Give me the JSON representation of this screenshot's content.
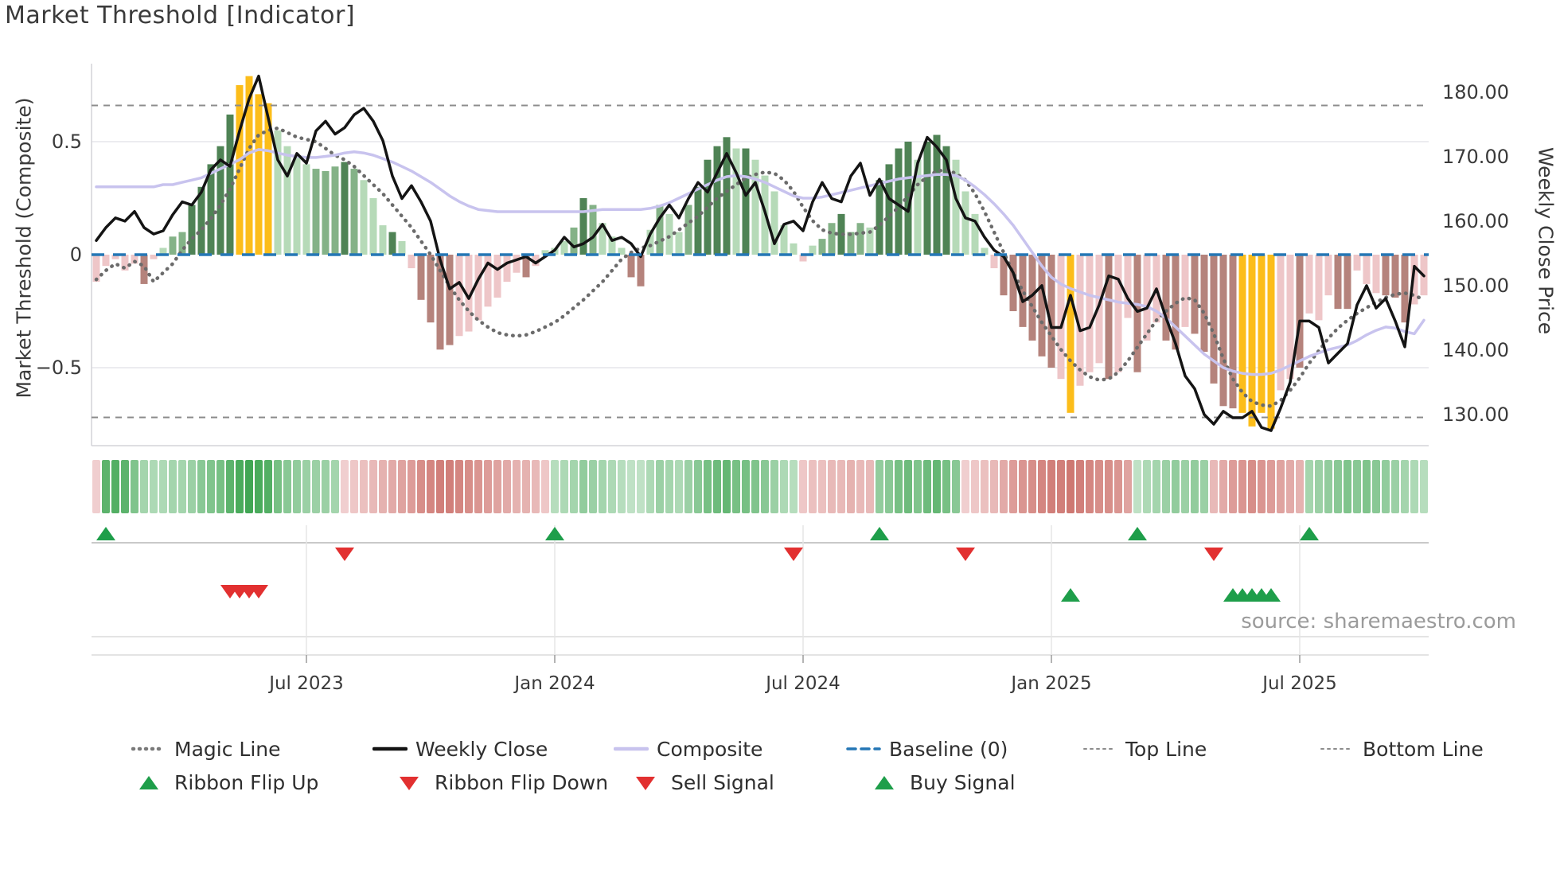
{
  "title": "Market Threshold [Indicator]",
  "source": "source: sharemaestro.com",
  "colors": {
    "bars": {
      "dg": "#4f8355",
      "mg": "#84b287",
      "lg": "#b6dab8",
      "y": "#fcbd1a",
      "lp": "#eec6c8",
      "dr": "#b5837c"
    },
    "weekly_close": "#141414",
    "composite": "#c8c3ee",
    "magic_line": "#6b6b6b",
    "baseline": "#2577b5",
    "threshold_lines": "#8c8c8c",
    "grid": "#ececf0",
    "spine": "#d4d4d8",
    "signal_green": "#1e9e4a",
    "signal_red": "#e23030",
    "ribbon_green_dark": "#2f9e44",
    "ribbon_green_light": "#e3f2e5",
    "ribbon_red_dark": "#c0544b",
    "ribbon_red_light": "#f9e4e6",
    "tick_text": "#3a3a3a"
  },
  "chart_data": {
    "type": "bar",
    "subtype": "weekly combo: threshold bars + price line + composite line + magic line + signal ribbon",
    "n_weeks": 140,
    "x_tick_labels": [
      "Jul 2023",
      "Jan 2024",
      "Jul 2024",
      "Jan 2025",
      "Jul 2025"
    ],
    "x_tick_weeks": [
      22,
      48,
      74,
      100,
      126
    ],
    "left_axis": {
      "label": "Market Threshold (Composite)",
      "tick_labels": [
        "0.5",
        "0",
        "−0.5"
      ],
      "tick_values": [
        0.5,
        0,
        -0.5
      ],
      "range": [
        -0.845,
        0.845
      ]
    },
    "right_axis": {
      "label": "Weekly Close Price",
      "tick_labels": [
        "180.00",
        "170.00",
        "160.00",
        "150.00",
        "140.00",
        "130.00"
      ],
      "tick_values": [
        180,
        170,
        160,
        150,
        140,
        130
      ],
      "range": [
        125.2,
        184.4
      ]
    },
    "baseline_value": 0,
    "top_line_value": 0.66,
    "bottom_line_value": -0.72,
    "series": {
      "threshold_bars": {
        "values": [
          -0.12,
          -0.05,
          -0.02,
          -0.07,
          -0.04,
          -0.13,
          -0.02,
          0.03,
          0.08,
          0.1,
          0.22,
          0.3,
          0.4,
          0.48,
          0.62,
          0.75,
          0.79,
          0.71,
          0.67,
          0.55,
          0.48,
          0.43,
          0.4,
          0.38,
          0.37,
          0.39,
          0.41,
          0.38,
          0.33,
          0.25,
          0.13,
          0.1,
          0.06,
          -0.06,
          -0.2,
          -0.3,
          -0.42,
          -0.4,
          -0.36,
          -0.34,
          -0.29,
          -0.23,
          -0.19,
          -0.12,
          -0.08,
          -0.1,
          -0.05,
          0.02,
          0.03,
          0.06,
          0.12,
          0.25,
          0.22,
          0.14,
          0.08,
          0.03,
          -0.1,
          -0.14,
          0.11,
          0.22,
          0.18,
          0.1,
          0.22,
          0.3,
          0.42,
          0.48,
          0.52,
          0.47,
          0.47,
          0.42,
          0.35,
          0.28,
          0.13,
          0.05,
          -0.03,
          0.04,
          0.07,
          0.14,
          0.18,
          0.1,
          0.14,
          0.12,
          0.33,
          0.4,
          0.47,
          0.5,
          0.42,
          0.5,
          0.53,
          0.48,
          0.42,
          0.28,
          0.18,
          0.03,
          -0.06,
          -0.18,
          -0.25,
          -0.32,
          -0.38,
          -0.45,
          -0.5,
          -0.55,
          -0.7,
          -0.58,
          -0.52,
          -0.48,
          -0.55,
          -0.52,
          -0.28,
          -0.52,
          -0.38,
          -0.3,
          -0.38,
          -0.42,
          -0.32,
          -0.35,
          -0.43,
          -0.57,
          -0.67,
          -0.68,
          -0.7,
          -0.76,
          -0.7,
          -0.77,
          -0.6,
          -0.55,
          -0.5,
          -0.26,
          -0.29,
          -0.18,
          -0.24,
          -0.24,
          -0.07,
          -0.13,
          -0.17,
          -0.18,
          -0.19,
          -0.3,
          -0.22,
          -0.18
        ],
        "color_codes": [
          "lp",
          "lp",
          "lp",
          "lp",
          "lp",
          "dr",
          "lp",
          "lg",
          "mg",
          "mg",
          "dg",
          "dg",
          "dg",
          "dg",
          "dg",
          "y",
          "y",
          "y",
          "y",
          "lg",
          "lg",
          "lg",
          "lg",
          "mg",
          "mg",
          "mg",
          "dg",
          "mg",
          "lg",
          "lg",
          "lg",
          "dg",
          "lg",
          "lp",
          "dr",
          "dr",
          "dr",
          "dr",
          "lp",
          "lp",
          "lp",
          "lp",
          "lp",
          "lp",
          "lp",
          "dr",
          "lp",
          "lg",
          "lg",
          "lg",
          "mg",
          "dg",
          "mg",
          "lg",
          "lg",
          "lg",
          "dr",
          "dr",
          "lg",
          "mg",
          "lg",
          "lg",
          "mg",
          "dg",
          "dg",
          "dg",
          "dg",
          "lg",
          "dg",
          "lg",
          "lg",
          "lg",
          "lg",
          "lg",
          "lp",
          "lg",
          "mg",
          "mg",
          "dg",
          "mg",
          "mg",
          "lg",
          "dg",
          "dg",
          "dg",
          "dg",
          "lg",
          "dg",
          "dg",
          "dg",
          "lg",
          "lg",
          "lg",
          "lg",
          "lp",
          "dr",
          "dr",
          "dr",
          "dr",
          "dr",
          "dr",
          "lp",
          "y",
          "lp",
          "lp",
          "lp",
          "dr",
          "lp",
          "lp",
          "dr",
          "lp",
          "lp",
          "dr",
          "dr",
          "lp",
          "dr",
          "dr",
          "dr",
          "dr",
          "dr",
          "y",
          "y",
          "y",
          "y",
          "lp",
          "lp",
          "dr",
          "lp",
          "lp",
          "lp",
          "dr",
          "dr",
          "lp",
          "lp",
          "lp",
          "dr",
          "dr",
          "dr",
          "lp",
          "lp"
        ]
      },
      "weekly_close": [
        157,
        159,
        160.5,
        160,
        161.5,
        159,
        158,
        158.5,
        161,
        163,
        162.5,
        164.5,
        168,
        169.5,
        168.5,
        174,
        179,
        182.5,
        176,
        169.5,
        167,
        170.5,
        169,
        174,
        175.5,
        173.5,
        174.5,
        176.5,
        177.5,
        175.5,
        172.5,
        167,
        163.5,
        165.5,
        163,
        160,
        154,
        149.5,
        150.5,
        148,
        151,
        153.5,
        152.5,
        153.5,
        154,
        154.5,
        153.5,
        154.5,
        155.5,
        157.5,
        156,
        156.5,
        157.5,
        159.5,
        157,
        157.5,
        156.5,
        154.5,
        158,
        160.5,
        162.5,
        160.5,
        163.5,
        166,
        164.5,
        167.5,
        170.5,
        167.5,
        164,
        166,
        161.5,
        156.5,
        159.5,
        160,
        158.5,
        163,
        166,
        163.5,
        163,
        167,
        169,
        164,
        166.5,
        163.5,
        162.5,
        161.5,
        169,
        173,
        171.5,
        169.5,
        163.5,
        160.5,
        160,
        157.5,
        155.5,
        154.5,
        152,
        147.5,
        148.5,
        150,
        143.5,
        143.5,
        148.5,
        143,
        143.5,
        147,
        151.5,
        151,
        148,
        146,
        146.5,
        149.5,
        145,
        141,
        136,
        134,
        130,
        128.5,
        130.5,
        129.5,
        129.5,
        130.5,
        128,
        127.5,
        131,
        135,
        144.5,
        144.5,
        143.5,
        138,
        139.5,
        141,
        147,
        150,
        146.5,
        148,
        144.5,
        140.5,
        153,
        151.5
      ],
      "composite": [
        0.3,
        0.3,
        0.3,
        0.3,
        0.3,
        0.3,
        0.3,
        0.31,
        0.31,
        0.32,
        0.33,
        0.34,
        0.36,
        0.38,
        0.4,
        0.42,
        0.45,
        0.465,
        0.46,
        0.45,
        0.44,
        0.435,
        0.43,
        0.43,
        0.435,
        0.44,
        0.45,
        0.455,
        0.45,
        0.44,
        0.425,
        0.41,
        0.39,
        0.37,
        0.345,
        0.32,
        0.29,
        0.26,
        0.235,
        0.215,
        0.2,
        0.195,
        0.19,
        0.19,
        0.19,
        0.19,
        0.19,
        0.19,
        0.19,
        0.19,
        0.19,
        0.19,
        0.195,
        0.2,
        0.2,
        0.2,
        0.2,
        0.2,
        0.205,
        0.215,
        0.23,
        0.25,
        0.27,
        0.29,
        0.31,
        0.33,
        0.345,
        0.35,
        0.345,
        0.335,
        0.32,
        0.3,
        0.28,
        0.26,
        0.25,
        0.25,
        0.255,
        0.265,
        0.275,
        0.285,
        0.295,
        0.305,
        0.315,
        0.325,
        0.335,
        0.34,
        0.345,
        0.35,
        0.355,
        0.355,
        0.35,
        0.33,
        0.3,
        0.265,
        0.225,
        0.18,
        0.13,
        0.07,
        0.01,
        -0.05,
        -0.1,
        -0.13,
        -0.15,
        -0.165,
        -0.18,
        -0.19,
        -0.2,
        -0.21,
        -0.215,
        -0.22,
        -0.23,
        -0.25,
        -0.28,
        -0.32,
        -0.36,
        -0.4,
        -0.44,
        -0.47,
        -0.5,
        -0.515,
        -0.525,
        -0.53,
        -0.53,
        -0.525,
        -0.51,
        -0.49,
        -0.47,
        -0.45,
        -0.435,
        -0.42,
        -0.41,
        -0.4,
        -0.38,
        -0.355,
        -0.335,
        -0.32,
        -0.325,
        -0.34,
        -0.35,
        -0.29
      ],
      "magic_line": [
        -0.11,
        -0.07,
        -0.04,
        -0.06,
        -0.03,
        -0.05,
        -0.12,
        -0.08,
        -0.04,
        0.02,
        0.07,
        0.11,
        0.16,
        0.22,
        0.29,
        0.38,
        0.47,
        0.53,
        0.55,
        0.56,
        0.54,
        0.52,
        0.51,
        0.5,
        0.47,
        0.44,
        0.42,
        0.39,
        0.35,
        0.31,
        0.27,
        0.22,
        0.17,
        0.12,
        0.06,
        0.0,
        -0.07,
        -0.14,
        -0.2,
        -0.25,
        -0.29,
        -0.32,
        -0.345,
        -0.355,
        -0.36,
        -0.355,
        -0.34,
        -0.32,
        -0.3,
        -0.27,
        -0.235,
        -0.2,
        -0.16,
        -0.12,
        -0.07,
        -0.02,
        0.01,
        0.03,
        0.04,
        0.06,
        0.08,
        0.11,
        0.14,
        0.17,
        0.21,
        0.25,
        0.28,
        0.31,
        0.34,
        0.355,
        0.365,
        0.36,
        0.33,
        0.28,
        0.21,
        0.15,
        0.11,
        0.095,
        0.09,
        0.09,
        0.095,
        0.1,
        0.13,
        0.17,
        0.21,
        0.26,
        0.31,
        0.345,
        0.37,
        0.375,
        0.36,
        0.33,
        0.27,
        0.19,
        0.1,
        0.01,
        -0.08,
        -0.16,
        -0.23,
        -0.3,
        -0.36,
        -0.42,
        -0.47,
        -0.51,
        -0.54,
        -0.555,
        -0.55,
        -0.52,
        -0.47,
        -0.41,
        -0.35,
        -0.29,
        -0.25,
        -0.215,
        -0.19,
        -0.2,
        -0.26,
        -0.35,
        -0.46,
        -0.55,
        -0.61,
        -0.65,
        -0.665,
        -0.67,
        -0.645,
        -0.6,
        -0.545,
        -0.48,
        -0.425,
        -0.37,
        -0.325,
        -0.29,
        -0.26,
        -0.235,
        -0.21,
        -0.19,
        -0.175,
        -0.17,
        -0.18,
        -0.2
      ],
      "ribbon": [
        -0.15,
        0.75,
        0.8,
        0.75,
        0.55,
        0.35,
        0.3,
        0.3,
        0.35,
        0.35,
        0.4,
        0.5,
        0.55,
        0.6,
        0.75,
        0.85,
        0.9,
        0.85,
        0.8,
        0.6,
        0.5,
        0.45,
        0.4,
        0.4,
        0.4,
        0.35,
        -0.15,
        -0.2,
        -0.25,
        -0.3,
        -0.35,
        -0.4,
        -0.45,
        -0.5,
        -0.6,
        -0.65,
        -0.7,
        -0.7,
        -0.65,
        -0.6,
        -0.55,
        -0.5,
        -0.45,
        -0.4,
        -0.35,
        -0.35,
        -0.3,
        -0.2,
        0.25,
        0.3,
        0.35,
        0.45,
        0.4,
        0.35,
        0.3,
        0.25,
        0.2,
        0.2,
        0.3,
        0.4,
        0.35,
        0.3,
        0.4,
        0.5,
        0.6,
        0.65,
        0.7,
        0.6,
        0.6,
        0.55,
        0.5,
        0.4,
        0.3,
        0.25,
        -0.2,
        -0.25,
        -0.25,
        -0.3,
        -0.3,
        -0.35,
        -0.3,
        -0.3,
        0.45,
        0.5,
        0.6,
        0.65,
        0.55,
        0.65,
        0.7,
        0.6,
        0.5,
        -0.15,
        -0.2,
        -0.25,
        -0.3,
        -0.4,
        -0.5,
        -0.55,
        -0.6,
        -0.65,
        -0.7,
        -0.7,
        -0.75,
        -0.7,
        -0.65,
        -0.6,
        -0.6,
        -0.55,
        -0.45,
        0.2,
        0.3,
        0.35,
        0.4,
        0.45,
        0.4,
        0.45,
        0.4,
        -0.3,
        -0.4,
        -0.5,
        -0.55,
        -0.6,
        -0.55,
        -0.5,
        -0.45,
        -0.4,
        -0.35,
        0.35,
        0.4,
        0.45,
        0.5,
        0.55,
        0.5,
        0.55,
        0.5,
        0.45,
        0.4,
        0.35,
        0.3,
        0.25
      ]
    },
    "signals": {
      "ribbon_flip_up_weeks": [
        1,
        48,
        82,
        109,
        127
      ],
      "ribbon_flip_down_weeks": [
        26,
        73,
        91,
        117
      ],
      "sell_signal_weeks": [
        14,
        15,
        16,
        17
      ],
      "buy_signal_weeks": [
        102,
        119,
        120,
        121,
        122,
        123
      ]
    },
    "legend_position": "bottom",
    "grid": "horizontal only"
  },
  "legend": {
    "row1": [
      {
        "label": "Magic Line",
        "icon": "dotted-thick-gray"
      },
      {
        "label": "Weekly Close",
        "icon": "solid-black"
      },
      {
        "label": "Composite",
        "icon": "solid-purple"
      },
      {
        "label": "Baseline (0)",
        "icon": "dashed-blue"
      },
      {
        "label": "Top Line",
        "icon": "dotted-thin-gray"
      },
      {
        "label": "Bottom Line",
        "icon": "dotted-thin-gray"
      }
    ],
    "row2": [
      {
        "label": "Ribbon Flip Up",
        "icon": "tri-up-green"
      },
      {
        "label": "Ribbon Flip Down",
        "icon": "tri-down-red"
      },
      {
        "label": "Sell Signal",
        "icon": "tri-down-red"
      },
      {
        "label": "Buy Signal",
        "icon": "tri-up-green"
      }
    ]
  }
}
